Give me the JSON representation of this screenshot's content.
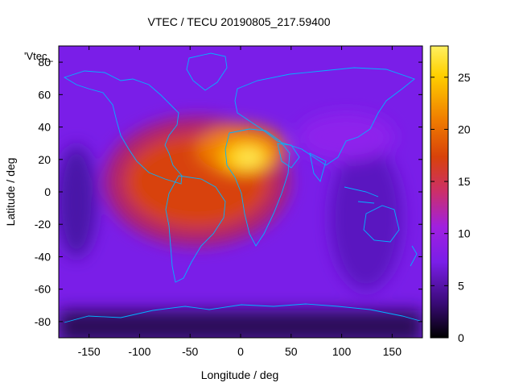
{
  "chart_data": {
    "type": "heatmap",
    "title": "VTEC / TECU 20190805_217.59400",
    "xlabel": "Longitude / deg",
    "ylabel": "Latitude / deg",
    "series_label": "'Vtec_",
    "xlim": [
      -180,
      180
    ],
    "ylim": [
      -90,
      90
    ],
    "x_ticks": [
      -150,
      -100,
      -50,
      0,
      50,
      100,
      150
    ],
    "y_ticks": [
      -80,
      -60,
      -40,
      -20,
      0,
      20,
      40,
      60,
      80
    ],
    "colorbar": {
      "range": [
        0,
        28
      ],
      "ticks": [
        0,
        5,
        10,
        15,
        20,
        25
      ],
      "palette": [
        "#000000",
        "#3a0a78",
        "#7a1ee8",
        "#a020e0",
        "#cc2f6a",
        "#d8420a",
        "#f07e00",
        "#ffd000",
        "#fff060"
      ]
    },
    "grid": false,
    "legend": "colorbar-right",
    "overlay": "coastlines",
    "features": [
      {
        "lon": 10,
        "lat": 18,
        "vtec": 27
      },
      {
        "lon": -30,
        "lat": 10,
        "vtec": 22
      },
      {
        "lon": -70,
        "lat": -10,
        "vtec": 18
      },
      {
        "lon": 40,
        "lat": 25,
        "vtec": 19
      },
      {
        "lon": 0,
        "lat": -20,
        "vtec": 16
      }
    ]
  }
}
